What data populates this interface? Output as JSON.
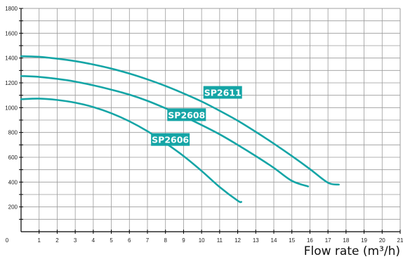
{
  "chart_data": {
    "type": "line",
    "xlabel": "Flow rate (m³/h)",
    "ylabel": "",
    "xlim": [
      0,
      21
    ],
    "ylim": [
      0,
      1800
    ],
    "x_ticks": [
      0,
      1,
      2,
      3,
      4,
      5,
      6,
      7,
      8,
      9,
      10,
      11,
      12,
      13,
      14,
      15,
      16,
      17,
      18,
      19,
      20,
      21
    ],
    "y_ticks": [
      200,
      400,
      600,
      800,
      1000,
      1200,
      1400,
      1600,
      1800
    ],
    "x_tick_labels": [
      "0",
      "1",
      "2",
      "3",
      "4",
      "5",
      "6",
      "7",
      "8",
      "9",
      "10",
      "11",
      "12",
      "13",
      "14",
      "15",
      "16",
      "17",
      "18",
      "19",
      "20",
      "21"
    ],
    "y_tick_labels": [
      "200",
      "400",
      "600",
      "800",
      "1000",
      "1200",
      "1400",
      "1600",
      "1800"
    ],
    "grid": true,
    "line_color": "#15a5a6",
    "series": [
      {
        "name": "SP2611",
        "x": [
          0,
          1,
          2,
          3,
          4,
          5,
          6,
          7,
          8,
          9,
          10,
          11,
          12,
          13,
          14,
          15,
          16,
          17,
          17.6
        ],
        "y": [
          1415,
          1410,
          1395,
          1375,
          1348,
          1315,
          1275,
          1228,
          1175,
          1115,
          1050,
          975,
          895,
          805,
          710,
          610,
          505,
          395,
          380
        ]
      },
      {
        "name": "SP2608",
        "x": [
          0,
          1,
          2,
          3,
          4,
          5,
          6,
          7,
          8,
          9,
          10,
          11,
          12,
          13,
          14,
          15,
          15.9
        ],
        "y": [
          1255,
          1248,
          1232,
          1210,
          1180,
          1145,
          1105,
          1055,
          995,
          930,
          860,
          785,
          700,
          610,
          515,
          410,
          365
        ]
      },
      {
        "name": "SP2606",
        "x": [
          0,
          1,
          2,
          3,
          4,
          5,
          6,
          7,
          8,
          9,
          10,
          11,
          12,
          12.2
        ],
        "y": [
          1068,
          1073,
          1062,
          1040,
          1005,
          955,
          890,
          810,
          715,
          610,
          490,
          360,
          250,
          240
        ]
      }
    ],
    "labels": [
      {
        "text": "SP2611",
        "x": 10.1,
        "y": 1095
      },
      {
        "text": "SP2608",
        "x": 8.1,
        "y": 915
      },
      {
        "text": "SP2606",
        "x": 7.2,
        "y": 715
      }
    ]
  }
}
